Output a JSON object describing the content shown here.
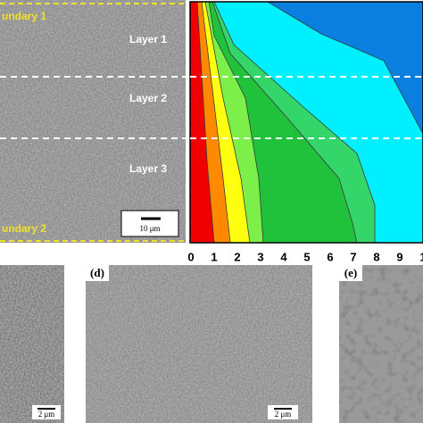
{
  "panel_a": {
    "boundary_top": "undary 1",
    "boundary_bottom": "undary 2",
    "layers": [
      "Layer 1",
      "Layer 2",
      "Layer 3"
    ],
    "scale_bar": "10 μm"
  },
  "panel_b": {
    "x_ticks": [
      "0",
      "1",
      "2",
      "3",
      "4",
      "5",
      "6",
      "7",
      "8",
      "9",
      "1"
    ]
  },
  "panel_c": {
    "scale_bar": "2 μm"
  },
  "panel_d": {
    "label": "(d)",
    "scale_bar": "2 μm"
  },
  "panel_e": {
    "label": "(e)"
  }
}
